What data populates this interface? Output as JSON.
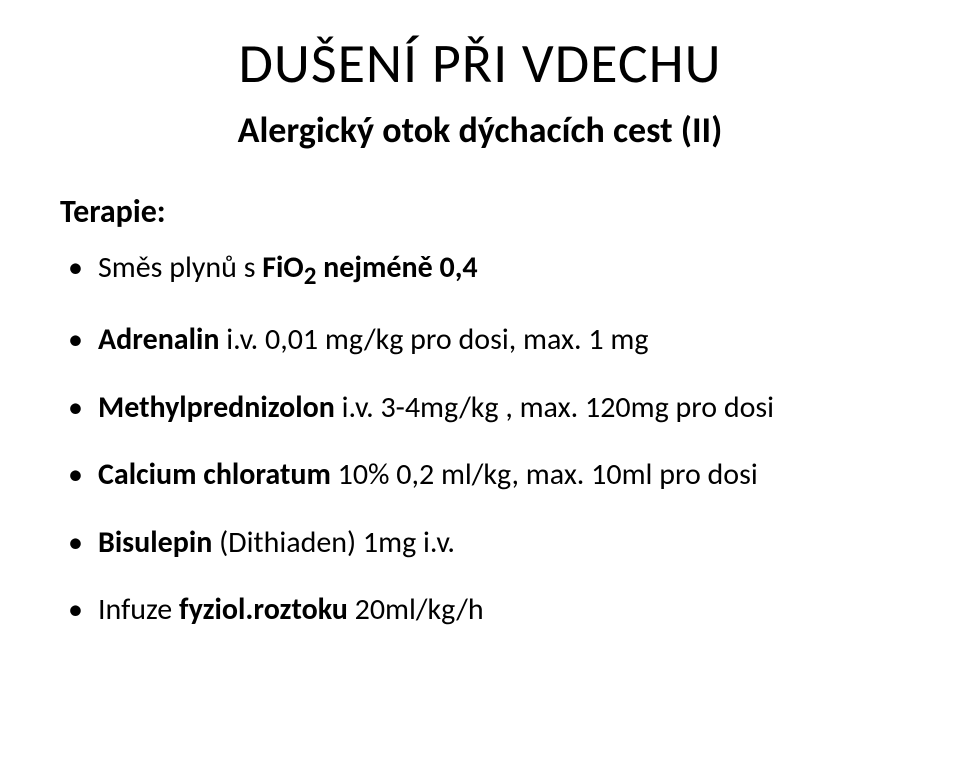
{
  "title": {
    "text": "DUŠENÍ PŘI VDECHU",
    "fontsize": 56,
    "weight": 400,
    "color": "#000000"
  },
  "subtitle": {
    "text": "Alergický otok dýchacích cest (II)",
    "fontsize": 36,
    "weight": 700,
    "color": "#000000"
  },
  "label": {
    "text": "Terapie:",
    "fontsize": 32,
    "weight": 700,
    "color": "#000000"
  },
  "bullets": {
    "fontsize": 30,
    "line_height": 1.25,
    "bullet_color": "#000000",
    "items": [
      {
        "runs": [
          {
            "t": "Směs plynů s ",
            "bold": false
          },
          {
            "t": "FiO",
            "bold": true
          },
          {
            "t": "2",
            "bold": true,
            "sub": true
          },
          {
            "t": " nejméně 0,4",
            "bold": true
          }
        ]
      },
      {
        "runs": [
          {
            "t": "Adrenalin ",
            "bold": true
          },
          {
            "t": "i.v. 0,01 mg/kg pro dosi, max. 1 mg",
            "bold": false
          }
        ]
      },
      {
        "runs": [
          {
            "t": "Methylprednizolon ",
            "bold": true
          },
          {
            "t": "i.v. 3-4mg/kg , max. 120mg pro dosi",
            "bold": false
          }
        ]
      },
      {
        "runs": [
          {
            "t": "Calcium chloratum ",
            "bold": true
          },
          {
            "t": "10%  0,2 ml/kg, max. 10ml pro dosi",
            "bold": false
          }
        ]
      },
      {
        "runs": [
          {
            "t": "Bisulepin ",
            "bold": true
          },
          {
            "t": "(Dithiaden) 1mg i.v.",
            "bold": false
          }
        ]
      },
      {
        "runs": [
          {
            "t": "Infuze ",
            "bold": false
          },
          {
            "t": "fyziol.roztoku ",
            "bold": true
          },
          {
            "t": "20ml/kg/h",
            "bold": false
          }
        ]
      }
    ]
  },
  "background_color": "#ffffff"
}
